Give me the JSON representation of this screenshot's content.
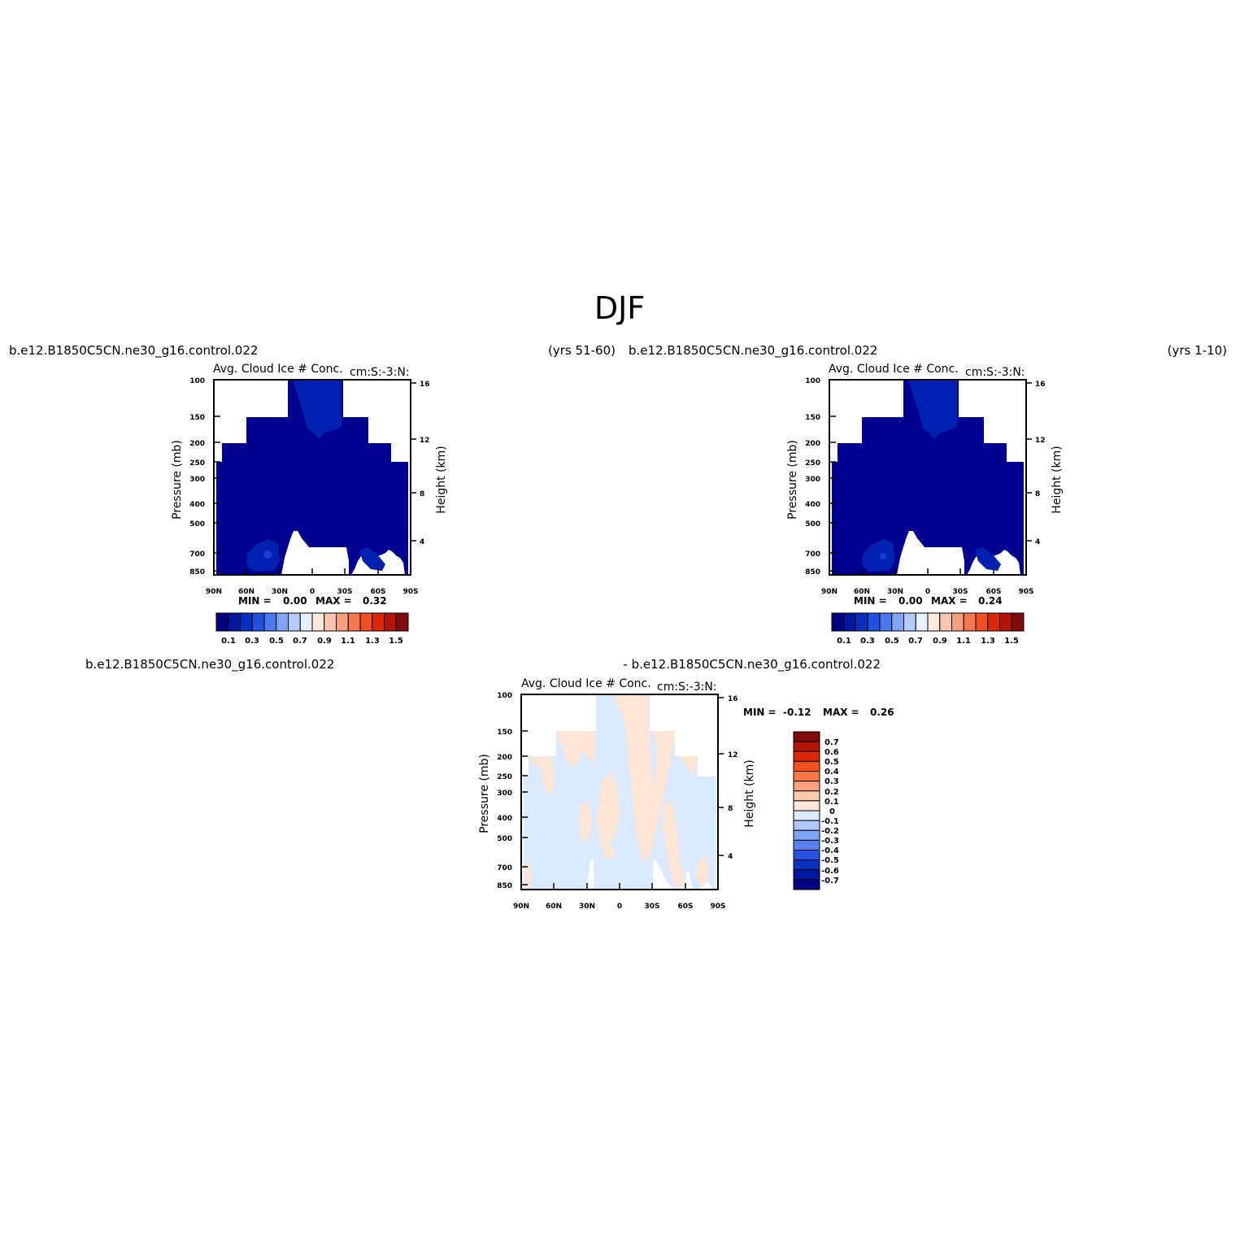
{
  "figure": {
    "title": "DJF"
  },
  "chart_data": [
    {
      "type": "heatmap",
      "case_name": "b.e12.B1850C5CN.ne30_g16.control.022",
      "years": "(yrs 51-60)",
      "title": "Avg. Cloud Ice # Conc.",
      "units": "cm:S:-3:N:",
      "xlabel": "",
      "ylabel": "Pressure (mb)",
      "ylabel_right": "Height (km)",
      "x_ticks": [
        "90N",
        "60N",
        "30N",
        "0",
        "30S",
        "60S",
        "90S"
      ],
      "y_ticks": [
        "100",
        "150",
        "200",
        "250",
        "300",
        "400",
        "500",
        "700",
        "850"
      ],
      "y_ticks_right": [
        "16",
        "12",
        "8",
        "4"
      ],
      "min_label": "MIN =",
      "min_value": "0.00",
      "max_label": "MAX =",
      "max_value": "0.32",
      "min": 0.0,
      "max": 0.32,
      "colorbar_labels": [
        "0.1",
        "0.3",
        "0.5",
        "0.7",
        "0.9",
        "1.1",
        "1.3",
        "1.5"
      ]
    },
    {
      "type": "heatmap",
      "case_name": "b.e12.B1850C5CN.ne30_g16.control.022",
      "years": "(yrs 1-10)",
      "title": "Avg. Cloud Ice # Conc.",
      "units": "cm:S:-3:N:",
      "xlabel": "",
      "ylabel": "Pressure (mb)",
      "ylabel_right": "Height (km)",
      "x_ticks": [
        "90N",
        "60N",
        "30N",
        "0",
        "30S",
        "60S",
        "90S"
      ],
      "y_ticks": [
        "100",
        "150",
        "200",
        "250",
        "300",
        "400",
        "500",
        "700",
        "850"
      ],
      "y_ticks_right": [
        "16",
        "12",
        "8",
        "4"
      ],
      "min_label": "MIN =",
      "min_value": "0.00",
      "max_label": "MAX =",
      "max_value": "0.24",
      "min": 0.0,
      "max": 0.24,
      "colorbar_labels": [
        "0.1",
        "0.3",
        "0.5",
        "0.7",
        "0.9",
        "1.1",
        "1.3",
        "1.5"
      ]
    },
    {
      "type": "heatmap",
      "case_name": "b.e12.B1850C5CN.ne30_g16.control.022",
      "case_name_b": "- b.e12.B1850C5CN.ne30_g16.control.022",
      "title": "Avg. Cloud Ice # Conc.",
      "units": "cm:S:-3:N:",
      "xlabel": "",
      "ylabel": "Pressure (mb)",
      "ylabel_right": "Height (km)",
      "x_ticks": [
        "90N",
        "60N",
        "30N",
        "0",
        "30S",
        "60S",
        "90S"
      ],
      "y_ticks": [
        "100",
        "150",
        "200",
        "250",
        "300",
        "400",
        "500",
        "700",
        "850"
      ],
      "y_ticks_right": [
        "16",
        "12",
        "8",
        "4"
      ],
      "min_label": "MIN =",
      "min_value": "-0.12",
      "max_label": "MAX =",
      "max_value": "0.26",
      "min": -0.12,
      "max": 0.26,
      "colorbar_labels": [
        "0.7",
        "0.6",
        "0.5",
        "0.4",
        "0.3",
        "0.2",
        "0.1",
        "0",
        "-0.1",
        "-0.2",
        "-0.3",
        "-0.4",
        "-0.5",
        "-0.6",
        "-0.7"
      ]
    }
  ],
  "colors": {
    "field_main": "#000090",
    "field_level2": "#0020b0",
    "field_level3": "#1040d0",
    "diff_positive": "#fde6d6",
    "diff_negative": "#dceaff",
    "colorbar_main": [
      "#000080",
      "#0018a0",
      "#0830c0",
      "#2050e0",
      "#4a78ee",
      "#80a4f6",
      "#b4ccfa",
      "#e4f0ff",
      "#ffe8dc",
      "#fcc4ac",
      "#f9a080",
      "#f87850",
      "#f25024",
      "#dc2808",
      "#b41406",
      "#820a0a"
    ],
    "colorbar_diff": [
      "#820a0a",
      "#b41406",
      "#dc2808",
      "#f85020",
      "#fa7848",
      "#fca080",
      "#fcc8ac",
      "#fde8dc",
      "#dceaff",
      "#b0c8f8",
      "#80a4f4",
      "#5880f0",
      "#2850e0",
      "#0830c0",
      "#0018a0",
      "#000080"
    ]
  }
}
